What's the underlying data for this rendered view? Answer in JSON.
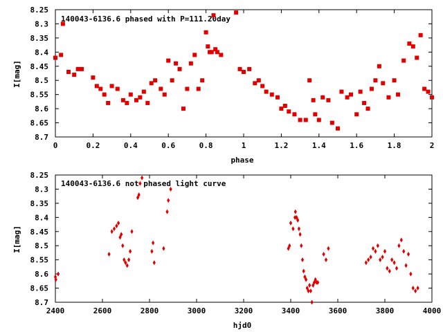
{
  "chart_data": [
    {
      "type": "scatter",
      "title": "140043-6136.6 phased with P=111.20day",
      "xlabel": "phase",
      "ylabel": "I[mag]",
      "xlim": [
        0,
        2
      ],
      "ylim": [
        8.25,
        8.7
      ],
      "y_inverted": true,
      "grid": false,
      "marker_color": "#e00000",
      "xticks": [
        "0",
        "0.2",
        "0.4",
        "0.6",
        "0.8",
        "1",
        "1.2",
        "1.4",
        "1.6",
        "1.8",
        "2"
      ],
      "yticks": [
        "8.25",
        "8.3",
        "8.35",
        "8.4",
        "8.45",
        "8.5",
        "8.55",
        "8.6",
        "8.65",
        "8.7"
      ],
      "series": [
        {
          "x": [
            0.0,
            0.03,
            0.04,
            0.07,
            0.1,
            0.12,
            0.14,
            0.2,
            0.22,
            0.24,
            0.26,
            0.28,
            0.3,
            0.33,
            0.36,
            0.38,
            0.4,
            0.43,
            0.45,
            0.47,
            0.49,
            0.51,
            0.53,
            0.56,
            0.58,
            0.6,
            0.62,
            0.64,
            0.66,
            0.68,
            0.7,
            0.72,
            0.74,
            0.76,
            0.78,
            0.8,
            0.81,
            0.82,
            0.83,
            0.84,
            0.85,
            0.86,
            0.88,
            0.96,
            0.98,
            1.0,
            1.03,
            1.06,
            1.08,
            1.1,
            1.12,
            1.15,
            1.18,
            1.2,
            1.22,
            1.24,
            1.27,
            1.3,
            1.33,
            1.35,
            1.37,
            1.38,
            1.4,
            1.42,
            1.45,
            1.47,
            1.5,
            1.52,
            1.55,
            1.57,
            1.6,
            1.62,
            1.64,
            1.66,
            1.68,
            1.7,
            1.72,
            1.74,
            1.77,
            1.8,
            1.82,
            1.85,
            1.88,
            1.9,
            1.92,
            1.94,
            1.96,
            1.98,
            2.0
          ],
          "y": [
            8.42,
            8.41,
            8.3,
            8.47,
            8.48,
            8.46,
            8.46,
            8.49,
            8.52,
            8.53,
            8.55,
            8.58,
            8.52,
            8.53,
            8.57,
            8.58,
            8.55,
            8.57,
            8.56,
            8.54,
            8.58,
            8.51,
            8.5,
            8.53,
            8.55,
            8.43,
            8.5,
            8.44,
            8.46,
            8.6,
            8.53,
            8.44,
            8.41,
            8.53,
            8.5,
            8.33,
            8.38,
            8.4,
            8.4,
            8.27,
            8.39,
            8.4,
            8.41,
            8.26,
            8.46,
            8.47,
            8.46,
            8.51,
            8.5,
            8.52,
            8.54,
            8.55,
            8.56,
            8.6,
            8.59,
            8.61,
            8.62,
            8.64,
            8.64,
            8.5,
            8.57,
            8.62,
            8.64,
            8.56,
            8.57,
            8.65,
            8.67,
            8.54,
            8.56,
            8.55,
            8.62,
            8.54,
            8.58,
            8.6,
            8.53,
            8.5,
            8.45,
            8.51,
            8.56,
            8.5,
            8.55,
            8.43,
            8.37,
            8.38,
            8.42,
            8.34,
            8.53,
            8.54,
            8.56
          ]
        }
      ]
    },
    {
      "type": "scatter",
      "title": "140043-6136.6 not phased light curve",
      "xlabel": "hjd0",
      "ylabel": "I[mag]",
      "xlim": [
        2400,
        4000
      ],
      "ylim": [
        8.25,
        8.7
      ],
      "y_inverted": true,
      "grid": false,
      "marker_color": "#e00000",
      "xticks": [
        "2400",
        "2600",
        "2800",
        "3000",
        "3200",
        "3400",
        "3600",
        "3800",
        "4000"
      ],
      "yticks": [
        "8.25",
        "8.3",
        "8.35",
        "8.4",
        "8.45",
        "8.5",
        "8.55",
        "8.6",
        "8.65",
        "8.7"
      ],
      "series": [
        {
          "x": [
            2400,
            2402,
            2412,
            2628,
            2640,
            2650,
            2660,
            2668,
            2675,
            2680,
            2686,
            2692,
            2698,
            2705,
            2712,
            2718,
            2725,
            2750,
            2755,
            2760,
            2768,
            2810,
            2815,
            2820,
            2860,
            2875,
            2880,
            2890,
            3390,
            3395,
            3400,
            3410,
            3418,
            3420,
            3425,
            3430,
            3435,
            3440,
            3445,
            3450,
            3455,
            3460,
            3465,
            3470,
            3475,
            3480,
            3485,
            3490,
            3495,
            3500,
            3505,
            3510,
            3515,
            3540,
            3550,
            3560,
            3720,
            3730,
            3740,
            3750,
            3760,
            3770,
            3780,
            3790,
            3800,
            3810,
            3820,
            3830,
            3840,
            3850,
            3860,
            3870,
            3880,
            3890,
            3900,
            3910,
            3920,
            3930,
            3940
          ],
          "y": [
            8.61,
            8.62,
            8.6,
            8.53,
            8.45,
            8.44,
            8.43,
            8.42,
            8.47,
            8.46,
            8.5,
            8.55,
            8.56,
            8.57,
            8.55,
            8.52,
            8.45,
            8.33,
            8.32,
            8.28,
            8.26,
            8.52,
            8.49,
            8.56,
            8.51,
            8.38,
            8.34,
            8.3,
            8.51,
            8.5,
            8.42,
            8.44,
            8.4,
            8.38,
            8.4,
            8.41,
            8.44,
            8.46,
            8.5,
            8.55,
            8.59,
            8.61,
            8.62,
            8.65,
            8.66,
            8.64,
            8.66,
            8.7,
            8.64,
            8.63,
            8.62,
            8.63,
            8.63,
            8.53,
            8.55,
            8.51,
            8.56,
            8.55,
            8.54,
            8.51,
            8.52,
            8.5,
            8.55,
            8.54,
            8.52,
            8.58,
            8.59,
            8.55,
            8.56,
            8.58,
            8.5,
            8.48,
            8.52,
            8.57,
            8.53,
            8.6,
            8.65,
            8.66,
            8.65
          ]
        }
      ]
    }
  ]
}
